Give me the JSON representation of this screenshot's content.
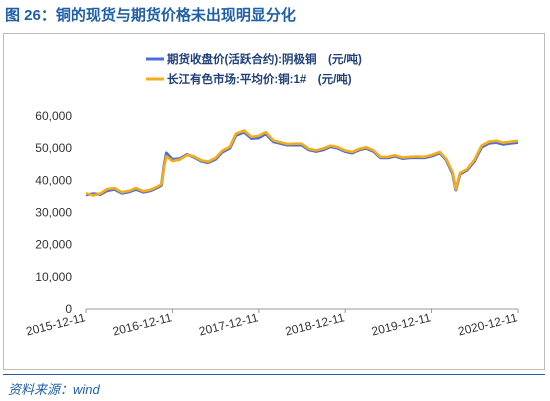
{
  "figure": {
    "title": "图 26：铜的现货与期货价格未出现明显分化"
  },
  "source": {
    "text": "资料来源：wind"
  },
  "chart_data": {
    "type": "line",
    "title": "",
    "xlabel": "",
    "ylabel": "",
    "ylim": [
      0,
      60000
    ],
    "yticks": [
      0,
      10000,
      20000,
      30000,
      40000,
      50000,
      60000
    ],
    "ytick_labels": [
      "0",
      "10,000",
      "20,000",
      "30,000",
      "40,000",
      "50,000",
      "60,000"
    ],
    "xlim": [
      "2015-12-11",
      "2020-12-11"
    ],
    "xtick_labels": [
      "2015-12-11",
      "2016-12-11",
      "2017-12-11",
      "2018-12-11",
      "2019-12-11",
      "2020-12-11"
    ],
    "legend_position": "top-center",
    "series": [
      {
        "name": "期货收盘价(活跃合约):阴极铜　(元/吨)",
        "color": "#4a6fd8",
        "x": [
          "2015-12-11",
          "2016-01-10",
          "2016-02-10",
          "2016-03-10",
          "2016-04-10",
          "2016-05-10",
          "2016-06-10",
          "2016-07-10",
          "2016-08-10",
          "2016-09-10",
          "2016-10-10",
          "2016-10-25",
          "2016-11-05",
          "2016-11-15",
          "2016-12-10",
          "2017-01-10",
          "2017-02-10",
          "2017-03-10",
          "2017-04-10",
          "2017-05-10",
          "2017-06-10",
          "2017-07-10",
          "2017-08-10",
          "2017-09-05",
          "2017-10-10",
          "2017-11-10",
          "2017-12-10",
          "2018-01-10",
          "2018-02-10",
          "2018-03-10",
          "2018-04-10",
          "2018-05-10",
          "2018-06-10",
          "2018-07-10",
          "2018-08-10",
          "2018-09-10",
          "2018-10-10",
          "2018-11-10",
          "2018-12-10",
          "2019-01-10",
          "2019-02-10",
          "2019-03-10",
          "2019-04-10",
          "2019-05-10",
          "2019-06-10",
          "2019-07-10",
          "2019-08-10",
          "2019-09-10",
          "2019-10-10",
          "2019-11-10",
          "2019-12-10",
          "2020-01-15",
          "2020-02-10",
          "2020-03-10",
          "2020-03-23",
          "2020-04-10",
          "2020-05-10",
          "2020-06-10",
          "2020-07-10",
          "2020-08-10",
          "2020-09-10",
          "2020-10-10",
          "2020-11-10",
          "2020-12-11"
        ],
        "values": [
          35500,
          35800,
          35600,
          36800,
          37200,
          36000,
          36400,
          37200,
          36300,
          36800,
          37800,
          38500,
          44500,
          48500,
          46500,
          46700,
          48000,
          47300,
          46000,
          45500,
          46500,
          48800,
          50000,
          54000,
          55000,
          53000,
          53200,
          54500,
          52000,
          51500,
          51000,
          51000,
          51000,
          49500,
          49000,
          49500,
          50500,
          50000,
          49000,
          48500,
          49500,
          50000,
          49000,
          47000,
          47000,
          47500,
          46800,
          47000,
          47100,
          47000,
          47500,
          48500,
          46500,
          42000,
          37000,
          42000,
          43200,
          46000,
          50300,
          51500,
          51800,
          51200,
          51500,
          51800
        ]
      },
      {
        "name": "长江有色市场:平均价:铜:1#　(元/吨)",
        "color": "#f5ac1c",
        "x": [
          "2015-12-11",
          "2016-01-10",
          "2016-02-10",
          "2016-03-10",
          "2016-04-10",
          "2016-05-10",
          "2016-06-10",
          "2016-07-10",
          "2016-08-10",
          "2016-09-10",
          "2016-10-10",
          "2016-10-25",
          "2016-11-05",
          "2016-11-15",
          "2016-12-10",
          "2017-01-10",
          "2017-02-10",
          "2017-03-10",
          "2017-04-10",
          "2017-05-10",
          "2017-06-10",
          "2017-07-10",
          "2017-08-10",
          "2017-09-05",
          "2017-10-10",
          "2017-11-10",
          "2017-12-10",
          "2018-01-10",
          "2018-02-10",
          "2018-03-10",
          "2018-04-10",
          "2018-05-10",
          "2018-06-10",
          "2018-07-10",
          "2018-08-10",
          "2018-09-10",
          "2018-10-10",
          "2018-11-10",
          "2018-12-10",
          "2019-01-10",
          "2019-02-10",
          "2019-03-10",
          "2019-04-10",
          "2019-05-10",
          "2019-06-10",
          "2019-07-10",
          "2019-08-10",
          "2019-09-10",
          "2019-10-10",
          "2019-11-10",
          "2019-12-10",
          "2020-01-15",
          "2020-02-10",
          "2020-03-10",
          "2020-03-23",
          "2020-04-10",
          "2020-05-10",
          "2020-06-10",
          "2020-07-10",
          "2020-08-10",
          "2020-09-10",
          "2020-10-10",
          "2020-11-10",
          "2020-12-11"
        ],
        "values": [
          36000,
          35300,
          35900,
          37300,
          37600,
          36300,
          36700,
          37600,
          36600,
          37100,
          38100,
          38800,
          44000,
          47500,
          46000,
          46400,
          47800,
          47500,
          46300,
          45800,
          46900,
          49200,
          50400,
          54500,
          55500,
          53500,
          53800,
          55000,
          52400,
          51900,
          51300,
          51400,
          51400,
          49800,
          49300,
          49900,
          50800,
          50300,
          49300,
          48800,
          49800,
          50300,
          49300,
          47300,
          47300,
          47800,
          47100,
          47300,
          47400,
          47300,
          47800,
          48800,
          46800,
          42500,
          37200,
          42300,
          43500,
          46400,
          50800,
          52000,
          52300,
          51700,
          52000,
          52300
        ]
      }
    ]
  }
}
